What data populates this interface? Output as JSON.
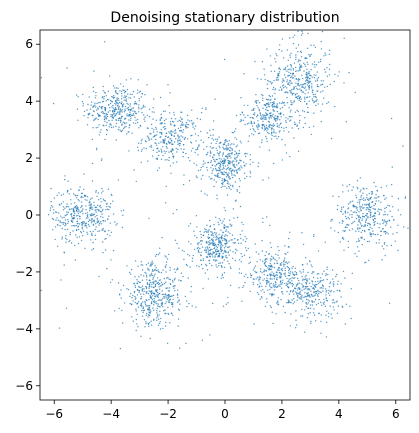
{
  "chart_data": {
    "type": "scatter",
    "title": "Denoising stationary distribution",
    "xlabel": "",
    "ylabel": "",
    "xlim": [
      -6.5,
      6.5
    ],
    "ylim": [
      -6.5,
      6.5
    ],
    "xticks": [
      -6,
      -4,
      -2,
      0,
      2,
      4,
      6
    ],
    "yticks": [
      -6,
      -4,
      -2,
      0,
      2,
      4,
      6
    ],
    "grid": false,
    "legend": "none",
    "point_color": "#1f77b4",
    "clusters": [
      {
        "center": [
          -3.8,
          3.7
        ],
        "spread": [
          0.55,
          0.45
        ],
        "count": 360
      },
      {
        "center": [
          -1.9,
          2.7
        ],
        "spread": [
          0.5,
          0.45
        ],
        "count": 260
      },
      {
        "center": [
          0.0,
          1.8
        ],
        "spread": [
          0.4,
          0.5
        ],
        "count": 330
      },
      {
        "center": [
          1.5,
          3.4
        ],
        "spread": [
          0.35,
          0.4
        ],
        "count": 220
      },
      {
        "center": [
          2.6,
          4.7
        ],
        "spread": [
          0.55,
          0.7
        ],
        "count": 400
      },
      {
        "center": [
          -5.0,
          0.0
        ],
        "spread": [
          0.55,
          0.5
        ],
        "count": 360
      },
      {
        "center": [
          5.0,
          0.0
        ],
        "spread": [
          0.55,
          0.55
        ],
        "count": 330
      },
      {
        "center": [
          -0.3,
          -1.1
        ],
        "spread": [
          0.45,
          0.45
        ],
        "count": 330
      },
      {
        "center": [
          -2.5,
          -2.8
        ],
        "spread": [
          0.55,
          0.55
        ],
        "count": 420
      },
      {
        "center": [
          1.7,
          -2.1
        ],
        "spread": [
          0.45,
          0.4
        ],
        "count": 260
      },
      {
        "center": [
          3.0,
          -2.7
        ],
        "spread": [
          0.55,
          0.45
        ],
        "count": 300
      }
    ],
    "background_noise_count": 260,
    "random_seed": 12345
  }
}
